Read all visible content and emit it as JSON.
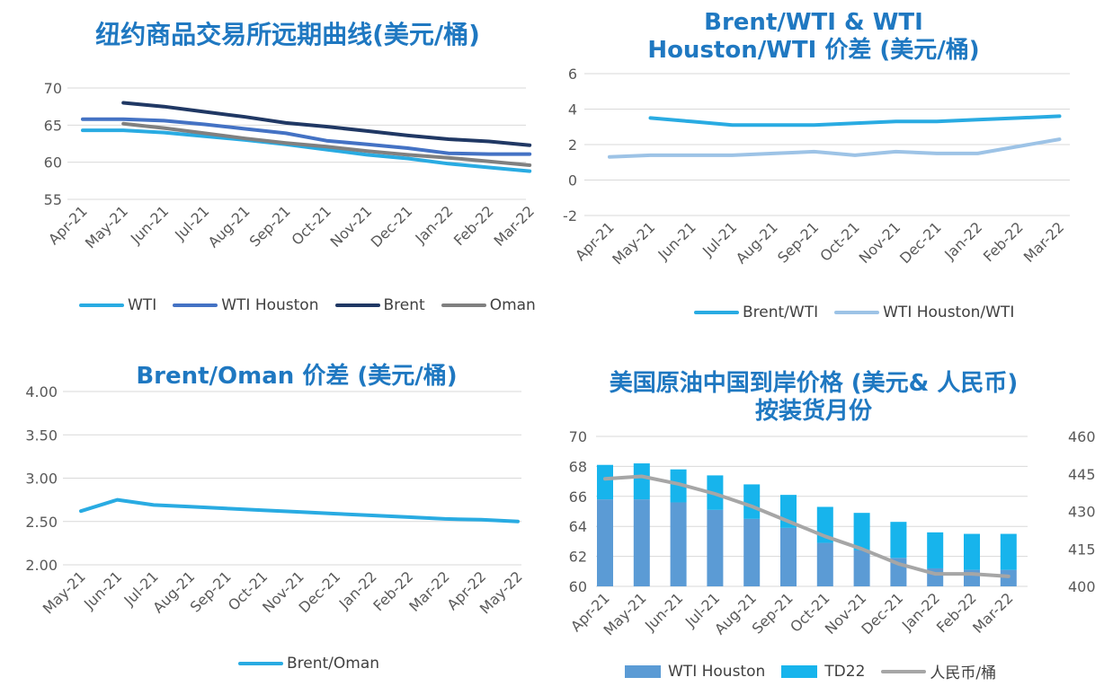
{
  "panels": {
    "p1": {
      "title": "纽约商品交易所远期曲线(美元/桶)"
    },
    "p2": {
      "title": "Brent/WTI & WTI Houston/WTI 价差 (美元/桶)"
    },
    "p3": {
      "title": "Brent/Oman 价差 (美元/桶)"
    },
    "p4": {
      "title": "美国原油中国到岸价格 (美元& 人民币) 按装货月份"
    }
  },
  "chart_data": [
    {
      "id": "forward_curve",
      "type": "line",
      "title": "纽约商品交易所远期曲线(美元/桶)",
      "categories": [
        "Apr-21",
        "May-21",
        "Jun-21",
        "Jul-21",
        "Aug-21",
        "Sep-21",
        "Oct-21",
        "Nov-21",
        "Dec-21",
        "Jan-22",
        "Feb-22",
        "Mar-22"
      ],
      "ylim": [
        55,
        70
      ],
      "yticks": [
        55,
        60,
        65,
        70
      ],
      "grid": true,
      "legend": "bottom",
      "series": [
        {
          "name": "WTI",
          "color": "#29ABE2",
          "values": [
            64.3,
            64.3,
            64.0,
            63.5,
            63.0,
            62.4,
            61.7,
            61.0,
            60.5,
            59.8,
            59.3,
            58.8
          ]
        },
        {
          "name": "WTI Houston",
          "color": "#4472C4",
          "values": [
            65.8,
            65.8,
            65.6,
            65.1,
            64.5,
            63.9,
            62.9,
            62.4,
            61.9,
            61.2,
            61.1,
            61.1
          ]
        },
        {
          "name": "Brent",
          "color": "#203864",
          "values": [
            null,
            68.0,
            67.5,
            66.8,
            66.1,
            65.3,
            64.8,
            64.2,
            63.6,
            63.1,
            62.8,
            62.3
          ]
        },
        {
          "name": "Oman",
          "color": "#808080",
          "values": [
            null,
            65.2,
            64.6,
            63.9,
            63.2,
            62.6,
            62.1,
            61.5,
            61.0,
            60.6,
            60.1,
            59.6
          ]
        }
      ]
    },
    {
      "id": "spreads",
      "type": "line",
      "title": "Brent/WTI & WTI Houston/WTI 价差 (美元/桶)",
      "categories": [
        "Apr-21",
        "May-21",
        "Jun-21",
        "Jul-21",
        "Aug-21",
        "Sep-21",
        "Oct-21",
        "Nov-21",
        "Dec-21",
        "Jan-22",
        "Feb-22",
        "Mar-22"
      ],
      "ylim": [
        -2,
        6
      ],
      "yticks": [
        -2,
        0,
        2,
        4,
        6
      ],
      "grid": true,
      "legend": "bottom",
      "series": [
        {
          "name": "Brent/WTI",
          "color": "#29ABE2",
          "values": [
            null,
            3.5,
            3.3,
            3.1,
            3.1,
            3.1,
            3.2,
            3.3,
            3.3,
            3.4,
            3.5,
            3.6
          ]
        },
        {
          "name": "WTI Houston/WTI",
          "color": "#9DC3E6",
          "values": [
            1.3,
            1.4,
            1.4,
            1.4,
            1.5,
            1.6,
            1.4,
            1.6,
            1.5,
            1.5,
            1.9,
            2.3
          ]
        }
      ]
    },
    {
      "id": "brent_oman",
      "type": "line",
      "title": "Brent/Oman 价差 (美元/桶)",
      "categories": [
        "May-21",
        "Jun-21",
        "Jul-21",
        "Aug-21",
        "Sep-21",
        "Oct-21",
        "Nov-21",
        "Dec-21",
        "Jan-22",
        "Feb-22",
        "Mar-22",
        "Apr-22",
        "May-22"
      ],
      "ylim": [
        2.0,
        4.0
      ],
      "yticks": [
        "2.00",
        "2.50",
        "3.00",
        "3.50",
        "4.00"
      ],
      "grid": true,
      "legend": "bottom",
      "series": [
        {
          "name": "Brent/Oman",
          "color": "#29ABE2",
          "values": [
            2.62,
            2.75,
            2.69,
            2.67,
            2.65,
            2.63,
            2.61,
            2.59,
            2.57,
            2.55,
            2.53,
            2.52,
            2.5
          ]
        }
      ]
    },
    {
      "id": "china_cif",
      "type": "bar",
      "title": "美国原油中国到岸价格 (美元& 人民币) 按装货月份",
      "categories": [
        "Apr-21",
        "May-21",
        "Jun-21",
        "Jul-21",
        "Aug-21",
        "Sep-21",
        "Oct-21",
        "Nov-21",
        "Dec-21",
        "Jan-22",
        "Feb-22",
        "Mar-22"
      ],
      "ylim": [
        60,
        70
      ],
      "yticks": [
        60,
        62,
        64,
        66,
        68,
        70
      ],
      "y2lim": [
        400,
        460
      ],
      "y2ticks": [
        400,
        415,
        430,
        445,
        460
      ],
      "grid": true,
      "legend": "bottom",
      "series": [
        {
          "name": "WTI Houston",
          "color": "#5B9BD5",
          "axis": "left",
          "kind": "bar",
          "values": [
            65.8,
            65.8,
            65.6,
            65.1,
            64.5,
            63.9,
            62.9,
            62.4,
            61.9,
            61.2,
            61.1,
            61.1
          ]
        },
        {
          "name": "TD22",
          "color": "#17B4EC",
          "axis": "left",
          "kind": "bar_stack",
          "values": [
            2.3,
            2.4,
            2.2,
            2.3,
            2.3,
            2.2,
            2.4,
            2.5,
            2.4,
            2.4,
            2.4,
            2.4
          ]
        },
        {
          "name": "人民币/桶",
          "color": "#A6A6A6",
          "axis": "right",
          "kind": "line",
          "values": [
            443,
            444,
            441,
            437,
            432,
            426,
            420,
            415,
            409,
            405,
            405,
            404
          ]
        }
      ]
    }
  ]
}
